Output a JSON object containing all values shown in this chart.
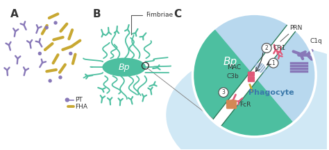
{
  "bg_color": "#ffffff",
  "teal_bacterium": "#4dbfa0",
  "teal_dark": "#2d8f72",
  "purple_antibody": "#8878b8",
  "yellow_antibody": "#c8a832",
  "pink_antibody": "#e05878",
  "blue_mac": "#88aacc",
  "orange_fcr": "#d48855",
  "light_blue_phagocyte": "#b8d8ee",
  "light_blue_outer": "#d0e8f5",
  "circle_teal": "#4dbfa0",
  "mem_green": "#2d7a5a",
  "label_A": "A",
  "label_B": "B",
  "label_C": "C",
  "label_pt": "PT",
  "label_fha": "FHA",
  "label_bp": "Bp",
  "label_fimbriae": "Fimbriae",
  "label_prn": "PRN",
  "label_mac": "MAC",
  "label_c3b": "C3b",
  "label_cr1": "CR1",
  "label_c1q": "C1q",
  "label_fcr": "FcR",
  "label_phagocyte": "Phagocyte"
}
